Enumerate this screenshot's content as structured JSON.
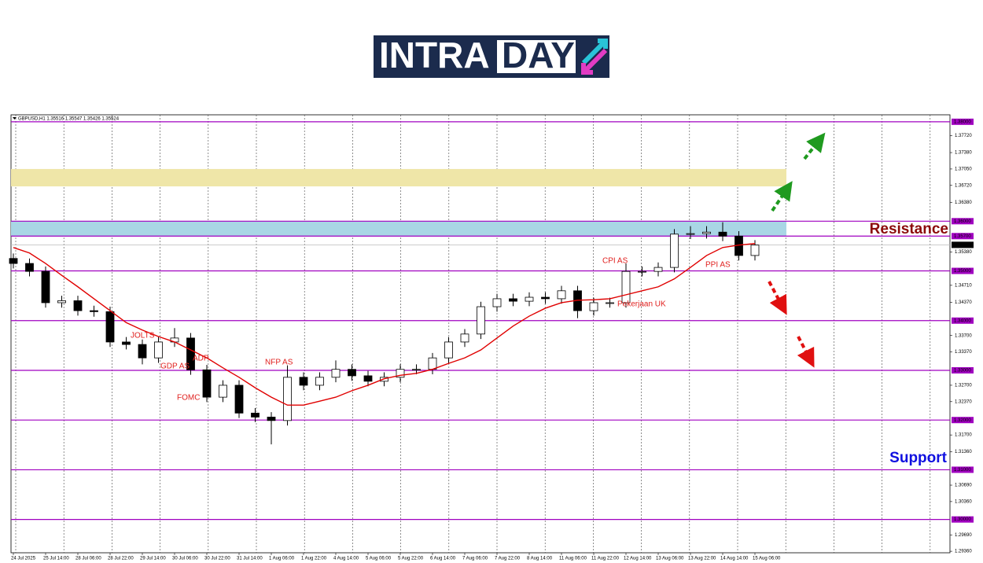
{
  "logo": [
    "INTRA",
    "DAY"
  ],
  "chart_data": {
    "type": "candlestick",
    "info": "GBPUSD,H1  1.35516 1.35547 1.35426 1.35524",
    "open": [
      1.3525,
      1.3515,
      1.3499,
      1.3436,
      1.344,
      1.342,
      1.3418,
      1.3357,
      1.3352,
      1.3325,
      1.3357,
      1.3365,
      1.3301,
      1.3246,
      1.327,
      1.3214,
      1.3206,
      1.3199,
      1.3286,
      1.327,
      1.3286,
      1.3302,
      1.3289,
      1.3278,
      1.3286,
      1.3302,
      1.3302,
      1.3325,
      1.3357,
      1.3373,
      1.3428,
      1.3444,
      1.3439,
      1.3447,
      1.3444,
      1.346,
      1.342,
      1.3436,
      1.3436,
      1.3499,
      1.3499,
      1.3507,
      1.3574,
      1.3575,
      1.3578,
      1.357,
      1.3531
    ],
    "high": [
      1.3535,
      1.3525,
      1.3509,
      1.345,
      1.345,
      1.343,
      1.3428,
      1.3367,
      1.3362,
      1.3367,
      1.3385,
      1.3375,
      1.3311,
      1.328,
      1.328,
      1.3224,
      1.3216,
      1.331,
      1.3296,
      1.3296,
      1.332,
      1.3312,
      1.3299,
      1.3296,
      1.3312,
      1.3312,
      1.3335,
      1.3367,
      1.3383,
      1.3438,
      1.3454,
      1.3454,
      1.3457,
      1.3457,
      1.347,
      1.347,
      1.3446,
      1.3446,
      1.3515,
      1.3509,
      1.3517,
      1.3584,
      1.359,
      1.359,
      1.3598,
      1.358,
      1.3562
    ],
    "low": [
      1.3505,
      1.3489,
      1.3426,
      1.3426,
      1.341,
      1.3408,
      1.3347,
      1.3342,
      1.3312,
      1.3315,
      1.3347,
      1.3291,
      1.3236,
      1.3236,
      1.3204,
      1.3196,
      1.3151,
      1.3189,
      1.326,
      1.326,
      1.3276,
      1.3279,
      1.3268,
      1.3268,
      1.3276,
      1.3292,
      1.3292,
      1.3315,
      1.3347,
      1.3363,
      1.3418,
      1.3429,
      1.3429,
      1.3434,
      1.3434,
      1.3405,
      1.341,
      1.3426,
      1.3426,
      1.3489,
      1.3489,
      1.3497,
      1.3564,
      1.3565,
      1.356,
      1.3521,
      1.3521
    ],
    "close": [
      1.3515,
      1.3499,
      1.3436,
      1.344,
      1.342,
      1.3418,
      1.3357,
      1.3352,
      1.3325,
      1.3357,
      1.3365,
      1.3301,
      1.3246,
      1.327,
      1.3214,
      1.3206,
      1.3199,
      1.3286,
      1.327,
      1.3286,
      1.3302,
      1.3289,
      1.3278,
      1.3286,
      1.3302,
      1.3302,
      1.3325,
      1.3357,
      1.3373,
      1.3428,
      1.3444,
      1.3439,
      1.3447,
      1.3444,
      1.346,
      1.342,
      1.3436,
      1.3436,
      1.3499,
      1.3499,
      1.3507,
      1.3574,
      1.3575,
      1.3578,
      1.357,
      1.3531,
      1.3552
    ],
    "up_color": "#ffffff",
    "down_color": "#000000",
    "moving_average": {
      "color": "#e00000",
      "values": [
        1.3547,
        1.3536,
        1.3515,
        1.3491,
        1.3468,
        1.3444,
        1.342,
        1.3396,
        1.3381,
        1.3368,
        1.3357,
        1.3341,
        1.3325,
        1.3305,
        1.3286,
        1.3265,
        1.3246,
        1.323,
        1.323,
        1.3238,
        1.3246,
        1.3259,
        1.327,
        1.3283,
        1.329,
        1.3294,
        1.3302,
        1.3314,
        1.3325,
        1.3341,
        1.3365,
        1.3389,
        1.3409,
        1.3425,
        1.3436,
        1.3441,
        1.3442,
        1.3444,
        1.3452,
        1.346,
        1.3468,
        1.3484,
        1.3507,
        1.3531,
        1.3547,
        1.3552,
        1.3555
      ]
    },
    "x_labels": [
      "24 Jul 2025",
      "25 Jul 14:00",
      "28 Jul 06:00",
      "28 Jul 22:00",
      "29 Jul 14:00",
      "30 Jul 06:00",
      "30 Jul 22:00",
      "31 Jul 14:00",
      "1 Aug 06:00",
      "1 Aug 22:00",
      "4 Aug 14:00",
      "5 Aug 06:00",
      "5 Aug 22:00",
      "6 Aug 14:00",
      "7 Aug 06:00",
      "7 Aug 22:00",
      "8 Aug 14:00",
      "11 Aug 06:00",
      "11 Aug 22:00",
      "12 Aug 14:00",
      "13 Aug 06:00",
      "13 Aug 22:00",
      "14 Aug 14:00",
      "15 Aug 06:00"
    ],
    "ylim": [
      1.2933,
      1.3814
    ],
    "yticks": [
      {
        "value": 1.3772,
        "label": "1.37720"
      },
      {
        "value": 1.3738,
        "label": "1.37380"
      },
      {
        "value": 1.3705,
        "label": "1.37050"
      },
      {
        "value": 1.3672,
        "label": "1.36720"
      },
      {
        "value": 1.3638,
        "label": "1.36380"
      },
      {
        "value": 1.3538,
        "label": "1.35380"
      },
      {
        "value": 1.3471,
        "label": "1.34710"
      },
      {
        "value": 1.3437,
        "label": "1.34370"
      },
      {
        "value": 1.337,
        "label": "1.33700"
      },
      {
        "value": 1.3337,
        "label": "1.33370"
      },
      {
        "value": 1.327,
        "label": "1.32700"
      },
      {
        "value": 1.3237,
        "label": "1.32370"
      },
      {
        "value": 1.317,
        "label": "1.31700"
      },
      {
        "value": 1.3136,
        "label": "1.31360"
      },
      {
        "value": 1.3069,
        "label": "1.30690"
      },
      {
        "value": 1.3036,
        "label": "1.30360"
      },
      {
        "value": 1.2969,
        "label": "1.29690"
      },
      {
        "value": 1.2936,
        "label": "1.29360"
      }
    ],
    "levels": [
      {
        "value": 1.38,
        "label": "1.38000"
      },
      {
        "value": 1.36,
        "label": "1.36000"
      },
      {
        "value": 1.357,
        "label": "1.35700"
      },
      {
        "value": 1.35,
        "label": "1.35000"
      },
      {
        "value": 1.34,
        "label": "1.34000"
      },
      {
        "value": 1.33,
        "label": "1.33000"
      },
      {
        "value": 1.32,
        "label": "1.32000"
      },
      {
        "value": 1.31,
        "label": "1.31000"
      },
      {
        "value": 1.3,
        "label": "1.30000"
      }
    ],
    "level_color": "#a000c0",
    "last_price": {
      "value": 1.35524,
      "label": "1.35524"
    },
    "zones": [
      {
        "from": 1.367,
        "to": 1.3705,
        "color": "#efe6a8"
      },
      {
        "from": 1.357,
        "to": 1.36,
        "color": "#a9d6e5"
      }
    ],
    "annotations": [
      "JOLTS",
      "GDP AS",
      "ADP",
      "FOMC",
      "NFP AS",
      "CPI AS",
      "PPI AS",
      "Pekerjaan UK"
    ],
    "resistance": "Resistance",
    "support": "Support"
  }
}
